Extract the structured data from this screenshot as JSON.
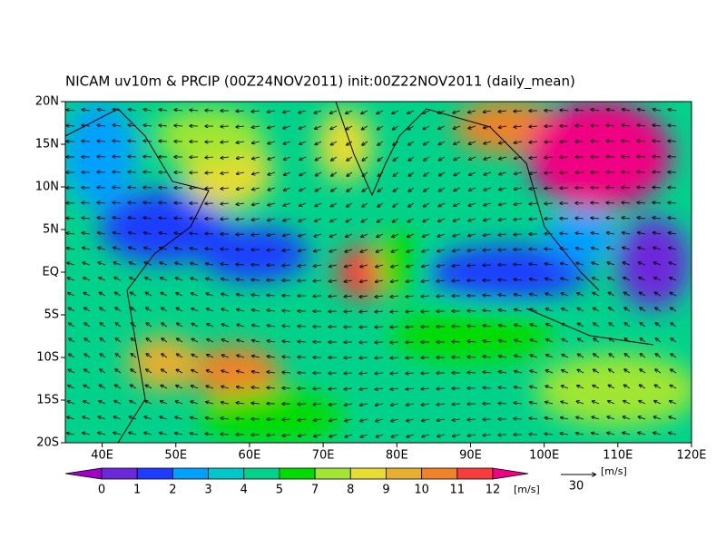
{
  "map": {
    "title": "NICAM uv10m & PRCIP (00Z24NOV2011) init:00Z22NOV2011 (daily_mean)",
    "xlim": [
      35,
      120
    ],
    "ylim": [
      -20,
      20
    ],
    "xticks": [
      {
        "value": 40,
        "label": "40E"
      },
      {
        "value": 50,
        "label": "50E"
      },
      {
        "value": 60,
        "label": "60E"
      },
      {
        "value": 70,
        "label": "70E"
      },
      {
        "value": 80,
        "label": "80E"
      },
      {
        "value": 90,
        "label": "90E"
      },
      {
        "value": 100,
        "label": "100E"
      },
      {
        "value": 110,
        "label": "110E"
      },
      {
        "value": 120,
        "label": "120E"
      }
    ],
    "yticks": [
      {
        "value": 20,
        "label": "20N"
      },
      {
        "value": 15,
        "label": "15N"
      },
      {
        "value": 10,
        "label": "10N"
      },
      {
        "value": 5,
        "label": "5N"
      },
      {
        "value": 0,
        "label": "EQ"
      },
      {
        "value": -5,
        "label": "5S"
      },
      {
        "value": -10,
        "label": "10S"
      },
      {
        "value": -15,
        "label": "15S"
      },
      {
        "value": -20,
        "label": "20S"
      }
    ],
    "colorbar": {
      "levels": [
        0,
        1,
        2,
        3,
        4,
        5,
        7,
        8,
        9,
        10,
        11,
        12
      ],
      "colors": [
        "#a000c8",
        "#6e28dc",
        "#1e3cff",
        "#00a0ff",
        "#00c8c8",
        "#00d28c",
        "#00dc00",
        "#a0e632",
        "#e6dc32",
        "#e6af2d",
        "#f08228",
        "#fa3c3c",
        "#f00082"
      ],
      "unit": "[m/s]"
    },
    "reference_vector": {
      "value": 30,
      "unit": "[m/s]"
    }
  }
}
